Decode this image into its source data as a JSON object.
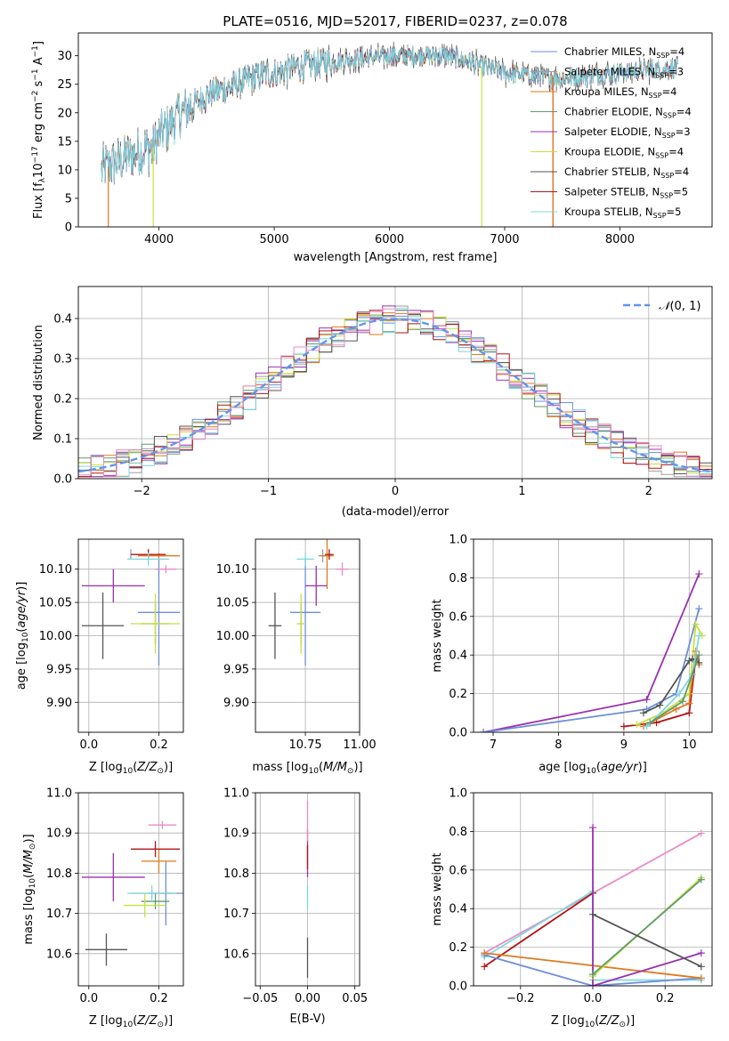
{
  "colors": {
    "chabrier_miles": "#6d8fd8",
    "salpeter_miles": "#9f9f9f",
    "kroupa_miles": "#e07a1f",
    "chabrier_elodie": "#5f9a6f",
    "salpeter_elodie": "#9b30b0",
    "kroupa_elodie": "#c8e040",
    "chabrier_stelib": "#555555",
    "salpeter_stelib": "#b01515",
    "kroupa_stelib": "#80d8e0",
    "normal": "#6495ed",
    "pink": "#e88cc8"
  },
  "chart_data": [
    {
      "id": "spectrum",
      "type": "line",
      "title": "PLATE=0516, MJD=52017, FIBERID=0237, z=0.078",
      "xlabel": "wavelength [Angstrom, rest frame]",
      "ylabel": "Flux [f$_\\lambda$10$^{-17}$ erg cm$^{-2}$ s$^{-1}$ A$^{-1}$]",
      "xlim": [
        3300,
        8800
      ],
      "ylim": [
        0,
        34
      ],
      "xticks": [
        4000,
        5000,
        6000,
        7000,
        8000
      ],
      "yticks": [
        0,
        5,
        10,
        15,
        20,
        25,
        30
      ],
      "continuum": {
        "x": [
          3500,
          3700,
          3950,
          4000,
          4200,
          4400,
          4800,
          5200,
          5500,
          6000,
          6500,
          7000,
          7500,
          8000,
          8500
        ],
        "y": [
          10,
          12,
          14,
          16,
          20,
          23,
          26,
          28,
          29,
          30,
          30,
          27,
          26,
          27,
          28
        ]
      },
      "legend_position": "right",
      "legend": [
        {
          "label": "Chabrier MILES, N",
          "sub": "SSP",
          "suffix": "=4",
          "color_key": "chabrier_miles"
        },
        {
          "label": "Salpeter MILES, N",
          "sub": "SSP",
          "suffix": "=3",
          "color_key": "salpeter_miles"
        },
        {
          "label": "Kroupa MILES, N",
          "sub": "SSP",
          "suffix": "=4",
          "color_key": "kroupa_miles"
        },
        {
          "label": "Chabrier ELODIE, N",
          "sub": "SSP",
          "suffix": "=4",
          "color_key": "chabrier_elodie"
        },
        {
          "label": "Salpeter ELODIE, N",
          "sub": "SSP",
          "suffix": "=3",
          "color_key": "salpeter_elodie"
        },
        {
          "label": "Kroupa ELODIE, N",
          "sub": "SSP",
          "suffix": "=4",
          "color_key": "kroupa_elodie"
        },
        {
          "label": "Chabrier STELIB, N",
          "sub": "SSP",
          "suffix": "=4",
          "color_key": "chabrier_stelib"
        },
        {
          "label": "Salpeter STELIB, N",
          "sub": "SSP",
          "suffix": "=5",
          "color_key": "salpeter_stelib"
        },
        {
          "label": "Kroupa STELIB, N",
          "sub": "SSP",
          "suffix": "=5",
          "color_key": "kroupa_stelib"
        }
      ]
    },
    {
      "id": "residuals",
      "type": "line",
      "xlabel": "(data-model)/error",
      "ylabel": "Normed distribution",
      "xlim": [
        -2.5,
        2.5
      ],
      "ylim": [
        0,
        0.48
      ],
      "xticks": [
        -2,
        -1,
        0,
        1,
        2
      ],
      "yticks": [
        0.0,
        0.1,
        0.2,
        0.3,
        0.4
      ],
      "grid": true,
      "legend_position": "top-right",
      "legend_label": "N(0, 1)",
      "bin_width": 0.1
    },
    {
      "id": "age_vs_z",
      "type": "scatter",
      "xlabel": "Z [log10(Z/Z⊙)]",
      "ylabel": "age  [log10(age/yr)]",
      "xlim": [
        -0.03,
        0.27
      ],
      "ylim": [
        9.855,
        10.145
      ],
      "xticks": [
        0.0,
        0.2
      ],
      "yticks": [
        9.9,
        9.95,
        10.0,
        10.05,
        10.1
      ],
      "grid": true,
      "points": [
        {
          "c": "chabrier_miles",
          "x": 0.2,
          "y": 10.035,
          "ex": 0.06,
          "ey": 0.08
        },
        {
          "c": "salpeter_miles",
          "x": 0.12,
          "y": 10.122,
          "ex": 0.0,
          "ey": 0.008
        },
        {
          "c": "kroupa_miles",
          "x": 0.2,
          "y": 10.12,
          "ex": 0.06,
          "ey": 0.004
        },
        {
          "c": "chabrier_elodie",
          "x": 0.19,
          "y": 10.018,
          "ex": 0.04,
          "ey": 0.03
        },
        {
          "c": "salpeter_elodie",
          "x": 0.07,
          "y": 10.075,
          "ex": 0.09,
          "ey": 0.025
        },
        {
          "c": "kroupa_elodie",
          "x": 0.19,
          "y": 10.018,
          "ex": 0.07,
          "ey": 0.045
        },
        {
          "c": "chabrier_stelib",
          "x": 0.04,
          "y": 10.015,
          "ex": 0.06,
          "ey": 0.05
        },
        {
          "c": "salpeter_stelib",
          "x": 0.17,
          "y": 10.122,
          "ex": 0.05,
          "ey": 0.008
        },
        {
          "c": "kroupa_stelib",
          "x": 0.17,
          "y": 10.115,
          "ex": 0.06,
          "ey": 0.01
        },
        {
          "c": "pink",
          "x": 0.22,
          "y": 10.1,
          "ex": 0.03,
          "ey": 0.006
        }
      ]
    },
    {
      "id": "age_vs_mass",
      "type": "scatter",
      "xlabel": "mass [log10(M/M⊙)]",
      "xlim": [
        10.52,
        11.0
      ],
      "ylim": [
        9.855,
        10.145
      ],
      "xticks": [
        10.75,
        11.0
      ],
      "yticks": [
        9.9,
        9.95,
        10.0,
        10.05,
        10.1
      ],
      "grid": true,
      "points": [
        {
          "c": "chabrier_miles",
          "x": 10.75,
          "y": 10.035,
          "ex": 0.07,
          "ey": 0.08
        },
        {
          "c": "salpeter_miles",
          "x": 10.83,
          "y": 10.12,
          "ex": 0.02,
          "ey": 0.01
        },
        {
          "c": "kroupa_miles",
          "x": 10.85,
          "y": 10.12,
          "ex": 0.03,
          "ey": 0.05
        },
        {
          "c": "chabrier_elodie",
          "x": 10.73,
          "y": 10.018,
          "ex": 0.01,
          "ey": 0.03
        },
        {
          "c": "salpeter_elodie",
          "x": 10.8,
          "y": 10.075,
          "ex": 0.05,
          "ey": 0.03
        },
        {
          "c": "kroupa_elodie",
          "x": 10.73,
          "y": 10.018,
          "ex": 0.02,
          "ey": 0.045
        },
        {
          "c": "chabrier_stelib",
          "x": 10.61,
          "y": 10.015,
          "ex": 0.03,
          "ey": 0.05
        },
        {
          "c": "salpeter_stelib",
          "x": 10.86,
          "y": 10.122,
          "ex": 0.02,
          "ey": 0.008
        },
        {
          "c": "kroupa_stelib",
          "x": 10.75,
          "y": 10.115,
          "ex": 0.04,
          "ey": 0.01
        },
        {
          "c": "pink",
          "x": 10.92,
          "y": 10.1,
          "ex": 0.03,
          "ey": 0.01
        }
      ]
    },
    {
      "id": "weights_vs_age",
      "type": "line",
      "xlabel": "age  [log10(age/yr)]",
      "ylabel": "mass weight",
      "xlim": [
        6.7,
        10.35
      ],
      "ylim": [
        0,
        1.0
      ],
      "xticks": [
        7,
        8,
        9,
        10
      ],
      "yticks": [
        0.0,
        0.2,
        0.4,
        0.6,
        0.8,
        1.0
      ],
      "grid": true,
      "series": [
        {
          "c": "salpeter_elodie",
          "x": [
            6.85,
            9.35,
            10.15
          ],
          "y": [
            0.0,
            0.17,
            0.82
          ]
        },
        {
          "c": "chabrier_miles",
          "x": [
            6.85,
            9.35,
            9.8,
            10.15
          ],
          "y": [
            0.0,
            0.12,
            0.2,
            0.64
          ]
        },
        {
          "c": "salpeter_stelib",
          "x": [
            9.0,
            9.5,
            10.0,
            10.1
          ],
          "y": [
            0.03,
            0.05,
            0.1,
            0.38
          ]
        },
        {
          "c": "kroupa_elodie",
          "x": [
            9.2,
            9.6,
            10.0,
            10.1,
            10.2
          ],
          "y": [
            0.04,
            0.1,
            0.2,
            0.56,
            0.5
          ]
        },
        {
          "c": "kroupa_miles",
          "x": [
            9.3,
            9.8,
            10.0,
            10.1,
            10.15
          ],
          "y": [
            0.03,
            0.12,
            0.15,
            0.42,
            0.35
          ]
        },
        {
          "c": "chabrier_stelib",
          "x": [
            9.3,
            9.55,
            10.0,
            10.05,
            10.15
          ],
          "y": [
            0.1,
            0.14,
            0.37,
            0.38,
            0.36
          ]
        },
        {
          "c": "kroupa_stelib",
          "x": [
            9.35,
            9.85,
            10.05,
            10.15
          ],
          "y": [
            0.03,
            0.2,
            0.3,
            0.5
          ]
        },
        {
          "c": "chabrier_elodie",
          "x": [
            9.4,
            9.9,
            10.15
          ],
          "y": [
            0.05,
            0.16,
            0.4
          ]
        }
      ]
    },
    {
      "id": "mass_vs_z",
      "type": "scatter",
      "xlabel": "Z [log10(Z/Z⊙)]",
      "ylabel": "mass [log10(M/M⊙)]",
      "xlim": [
        -0.03,
        0.27
      ],
      "ylim": [
        10.52,
        11.0
      ],
      "xticks": [
        0.0,
        0.2
      ],
      "yticks": [
        10.6,
        10.7,
        10.8,
        10.9,
        11.0
      ],
      "grid": true,
      "points": [
        {
          "c": "chabrier_miles",
          "x": 0.22,
          "y": 10.75,
          "ex": 0.05,
          "ey": 0.08
        },
        {
          "c": "salpeter_miles",
          "x": 0.18,
          "y": 10.75,
          "ex": 0.06,
          "ey": 0.01
        },
        {
          "c": "kroupa_miles",
          "x": 0.2,
          "y": 10.83,
          "ex": 0.05,
          "ey": 0.03
        },
        {
          "c": "chabrier_elodie",
          "x": 0.19,
          "y": 10.73,
          "ex": 0.04,
          "ey": 0.02
        },
        {
          "c": "salpeter_elodie",
          "x": 0.07,
          "y": 10.79,
          "ex": 0.09,
          "ey": 0.06
        },
        {
          "c": "kroupa_elodie",
          "x": 0.16,
          "y": 10.72,
          "ex": 0.06,
          "ey": 0.03
        },
        {
          "c": "chabrier_stelib",
          "x": 0.05,
          "y": 10.61,
          "ex": 0.06,
          "ey": 0.04
        },
        {
          "c": "salpeter_stelib",
          "x": 0.19,
          "y": 10.86,
          "ex": 0.07,
          "ey": 0.02
        },
        {
          "c": "kroupa_stelib",
          "x": 0.18,
          "y": 10.75,
          "ex": 0.07,
          "ey": 0.02
        },
        {
          "c": "pink",
          "x": 0.21,
          "y": 10.92,
          "ex": 0.04,
          "ey": 0.01
        }
      ]
    },
    {
      "id": "mass_vs_ebv",
      "type": "scatter",
      "xlabel": "E(B-V)",
      "xlim": [
        -0.055,
        0.055
      ],
      "ylim": [
        10.52,
        11.0
      ],
      "xticks": [
        -0.05,
        0.0,
        0.05
      ],
      "yticks": [
        10.6,
        10.7,
        10.8,
        10.9,
        11.0
      ],
      "grid": true,
      "points": [
        {
          "c": "chabrier_stelib",
          "x": 0.0,
          "y": 10.59,
          "ex": 0.0,
          "ey": 0.05
        },
        {
          "c": "salpeter_elodie",
          "x": 0.0,
          "y": 10.85,
          "ex": 0.0,
          "ey": 0.06
        },
        {
          "c": "salpeter_stelib",
          "x": 0.0,
          "y": 10.84,
          "ex": 0.0,
          "ey": 0.03
        },
        {
          "c": "kroupa_stelib",
          "x": 0.0,
          "y": 10.74,
          "ex": 0.0,
          "ey": 0.03
        },
        {
          "c": "pink",
          "x": 0.0,
          "y": 10.93,
          "ex": 0.0,
          "ey": 0.05
        }
      ]
    },
    {
      "id": "weights_vs_z",
      "type": "line",
      "xlabel": "Z [log10(Z/Z⊙)]",
      "ylabel": "mass weight",
      "xlim": [
        -0.33,
        0.33
      ],
      "ylim": [
        0,
        1.0
      ],
      "xticks": [
        -0.2,
        0.0,
        0.2
      ],
      "yticks": [
        0.0,
        0.2,
        0.4,
        0.6,
        0.8,
        1.0
      ],
      "grid": true,
      "series": [
        {
          "c": "pink",
          "x": [
            -0.3,
            0.0,
            0.3
          ],
          "y": [
            0.17,
            0.48,
            0.79
          ]
        },
        {
          "c": "salpeter_stelib",
          "x": [
            -0.3,
            0.0
          ],
          "y": [
            0.1,
            0.48
          ]
        },
        {
          "c": "kroupa_stelib",
          "x": [
            -0.3,
            0.0,
            0.0,
            0.3
          ],
          "y": [
            0.15,
            0.49,
            0.03,
            0.03
          ]
        },
        {
          "c": "chabrier_miles",
          "x": [
            -0.3,
            0.0,
            0.3
          ],
          "y": [
            0.16,
            0.0,
            0.04
          ]
        },
        {
          "c": "kroupa_miles",
          "x": [
            -0.3,
            0.3
          ],
          "y": [
            0.17,
            0.04
          ]
        },
        {
          "c": "salpeter_elodie",
          "x": [
            0.0,
            0.0,
            0.3
          ],
          "y": [
            0.82,
            0.0,
            0.17
          ]
        },
        {
          "c": "kroupa_elodie",
          "x": [
            0.0,
            0.3
          ],
          "y": [
            0.05,
            0.56
          ]
        },
        {
          "c": "chabrier_elodie",
          "x": [
            0.0,
            0.3
          ],
          "y": [
            0.06,
            0.55
          ]
        },
        {
          "c": "chabrier_stelib",
          "x": [
            0.0,
            0.3
          ],
          "y": [
            0.37,
            0.1
          ]
        }
      ]
    }
  ]
}
